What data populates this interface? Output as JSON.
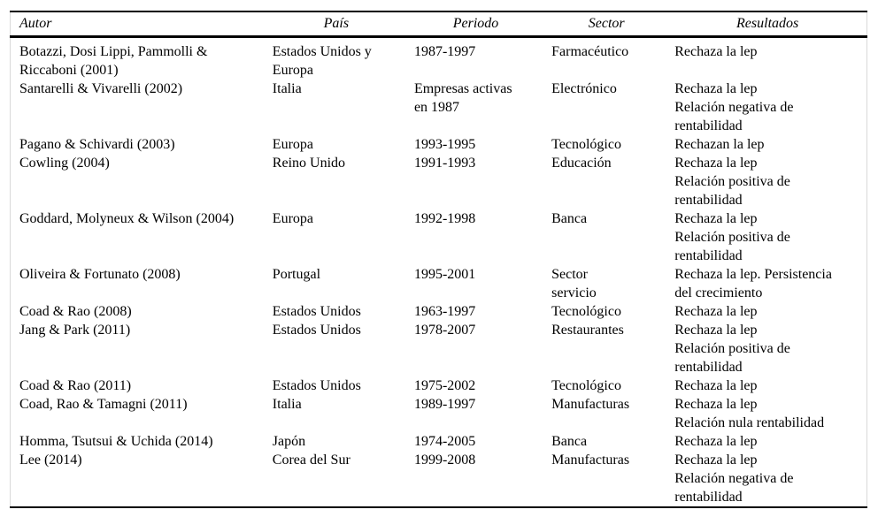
{
  "table": {
    "headers": {
      "autor": "Autor",
      "pais": "País",
      "periodo": "Periodo",
      "sector": "Sector",
      "resultados": "Resultados"
    },
    "rows": [
      {
        "autor": "Botazzi, Dosi Lippi, Pammolli &\nRiccaboni (2001)",
        "pais": "Estados Unidos y\nEuropa",
        "periodo": "1987-1997",
        "sector": "Farmacéutico",
        "resultados": "Rechaza la lep"
      },
      {
        "autor": "Santarelli & Vivarelli (2002)",
        "pais": "Italia",
        "periodo": "Empresas activas\nen 1987",
        "sector": "Electrónico",
        "resultados": "Rechaza la lep\nRelación negativa de\nrentabilidad"
      },
      {
        "autor": "Pagano & Schivardi (2003)",
        "pais": "Europa",
        "periodo": "1993-1995",
        "sector": "Tecnológico",
        "resultados": "Rechazan la lep"
      },
      {
        "autor": "Cowling (2004)",
        "pais": "Reino Unido",
        "periodo": "1991-1993",
        "sector": "Educación",
        "resultados": "Rechaza la lep\nRelación positiva de\nrentabilidad"
      },
      {
        "autor": "Goddard, Molyneux & Wilson (2004)",
        "pais": "Europa",
        "periodo": "1992-1998",
        "sector": "Banca",
        "resultados": "Rechaza la lep\nRelación positiva de\nrentabilidad"
      },
      {
        "autor": "Oliveira & Fortunato (2008)",
        "pais": "Portugal",
        "periodo": "1995-2001",
        "sector": "Sector\nservicio",
        "resultados": "Rechaza la lep. Persistencia\ndel crecimiento"
      },
      {
        "autor": "Coad & Rao (2008)",
        "pais": "Estados Unidos",
        "periodo": "1963-1997",
        "sector": "Tecnológico",
        "resultados": "Rechaza la lep"
      },
      {
        "autor": "Jang & Park (2011)",
        "pais": "Estados Unidos",
        "periodo": "1978-2007",
        "sector": "Restaurantes",
        "resultados": "Rechaza la lep\nRelación positiva de\nrentabilidad"
      },
      {
        "autor": "Coad & Rao (2011)",
        "pais": "Estados Unidos",
        "periodo": "1975-2002",
        "sector": "Tecnológico",
        "resultados": "Rechaza la lep"
      },
      {
        "autor": "Coad, Rao & Tamagni (2011)",
        "pais": "Italia",
        "periodo": "1989-1997",
        "sector": "Manufacturas",
        "resultados": "Rechaza la lep\nRelación nula rentabilidad"
      },
      {
        "autor": "Homma, Tsutsui & Uchida (2014)",
        "pais": "Japón",
        "periodo": "1974-2005",
        "sector": "Banca",
        "resultados": "Rechaza la lep"
      },
      {
        "autor": "Lee (2014)",
        "pais": "Corea del Sur",
        "periodo": "1999-2008",
        "sector": "Manufacturas",
        "resultados": "Rechaza la lep\nRelación negativa de\nrentabilidad"
      }
    ]
  },
  "styles": {
    "rule_color": "#000000",
    "faint_border_color": "#d9d9d9",
    "text_color": "#000000",
    "background": "#ffffff"
  }
}
